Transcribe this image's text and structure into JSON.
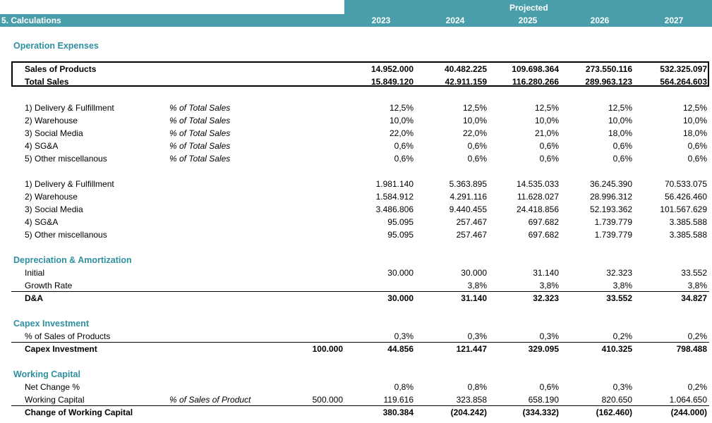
{
  "header": {
    "section_title": "5.  Calculations",
    "projected_label": "Projected",
    "years": [
      "2023",
      "2024",
      "2025",
      "2026",
      "2027"
    ]
  },
  "sections": {
    "operation_expenses": "Operation Expenses",
    "depreciation": "Depreciation & Amortization",
    "capex": "Capex Investment",
    "working_capital": "Working Capital"
  },
  "sales": [
    {
      "label": "Sales of Products",
      "values": [
        "14.952.000",
        "40.482.225",
        "109.698.364",
        "273.550.116",
        "532.325.097"
      ]
    },
    {
      "label": "Total Sales",
      "values": [
        "15.849.120",
        "42.911.159",
        "116.280.266",
        "289.963.123",
        "564.264.603"
      ]
    }
  ],
  "opex_pct": [
    {
      "label": "1) Delivery & Fulfillment",
      "basis": "% of Total Sales",
      "values": [
        "12,5%",
        "12,5%",
        "12,5%",
        "12,5%",
        "12,5%"
      ]
    },
    {
      "label": "2) Warehouse",
      "basis": "% of Total Sales",
      "values": [
        "10,0%",
        "10,0%",
        "10,0%",
        "10,0%",
        "10,0%"
      ]
    },
    {
      "label": "3) Social Media",
      "basis": "% of Total Sales",
      "values": [
        "22,0%",
        "22,0%",
        "21,0%",
        "18,0%",
        "18,0%"
      ]
    },
    {
      "label": "4) SG&A",
      "basis": "% of Total Sales",
      "values": [
        "0,6%",
        "0,6%",
        "0,6%",
        "0,6%",
        "0,6%"
      ]
    },
    {
      "label": "5) Other miscellanous",
      "basis": "% of Total Sales",
      "values": [
        "0,6%",
        "0,6%",
        "0,6%",
        "0,6%",
        "0,6%"
      ]
    }
  ],
  "opex_abs": [
    {
      "label": "1) Delivery & Fulfillment",
      "values": [
        "1.981.140",
        "5.363.895",
        "14.535.033",
        "36.245.390",
        "70.533.075"
      ]
    },
    {
      "label": "2) Warehouse",
      "values": [
        "1.584.912",
        "4.291.116",
        "11.628.027",
        "28.996.312",
        "56.426.460"
      ]
    },
    {
      "label": "3) Social Media",
      "values": [
        "3.486.806",
        "9.440.455",
        "24.418.856",
        "52.193.362",
        "101.567.629"
      ]
    },
    {
      "label": "4) SG&A",
      "values": [
        "95.095",
        "257.467",
        "697.682",
        "1.739.779",
        "3.385.588"
      ]
    },
    {
      "label": "5) Other miscellanous",
      "values": [
        "95.095",
        "257.467",
        "697.682",
        "1.739.779",
        "3.385.588"
      ]
    }
  ],
  "da": {
    "initial": {
      "label": "Initial",
      "values": [
        "30.000",
        "30.000",
        "31.140",
        "32.323",
        "33.552"
      ]
    },
    "growth": {
      "label": "Growth Rate",
      "values": [
        "",
        "3,8%",
        "3,8%",
        "3,8%",
        "3,8%"
      ]
    },
    "total": {
      "label": "D&A",
      "values": [
        "30.000",
        "31.140",
        "32.323",
        "33.552",
        "34.827"
      ]
    }
  },
  "capex": {
    "pct": {
      "label": "% of Sales of Products",
      "values": [
        "0,3%",
        "0,3%",
        "0,3%",
        "0,2%",
        "0,2%"
      ]
    },
    "total": {
      "label": "Capex Investment",
      "base": "100.000",
      "values": [
        "44.856",
        "121.447",
        "329.095",
        "410.325",
        "798.488"
      ]
    }
  },
  "wc": {
    "net": {
      "label": "Net Change %",
      "values": [
        "0,8%",
        "0,8%",
        "0,6%",
        "0,3%",
        "0,2%"
      ]
    },
    "wc": {
      "label": "Working Capital",
      "basis": "% of Sales of Product",
      "base": "500.000",
      "values": [
        "119.616",
        "323.858",
        "658.190",
        "820.650",
        "1.064.650"
      ]
    },
    "change": {
      "label": "Change of Working Capital",
      "values": [
        "380.384",
        "(204.242)",
        "(334.332)",
        "(162.460)",
        "(244.000)"
      ]
    }
  }
}
